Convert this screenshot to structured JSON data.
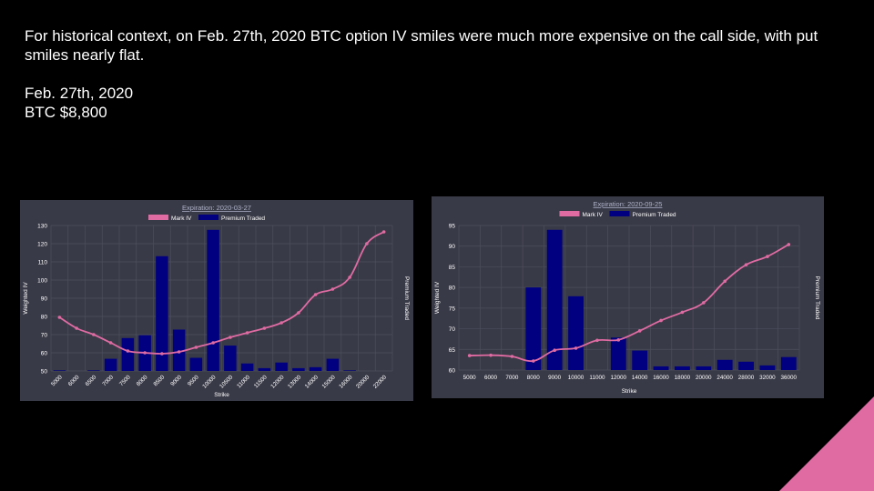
{
  "slide": {
    "intro": "For historical context, on Feb. 27th, 2020 BTC option IV smiles were much more expensive on the call side, with put smiles nearly flat.",
    "date_line": "Feb. 27th, 2020",
    "price_line": "BTC $8,800",
    "accent_color": "#e06ba3"
  },
  "chart_data": [
    {
      "type": "bar",
      "title": "Expiration: 2020-03-27",
      "xlabel": "Strike",
      "ylabel": "Weighted IV",
      "y2label": "Premium Traded",
      "ylim": [
        50,
        130
      ],
      "yticks": [
        50,
        60,
        70,
        80,
        90,
        100,
        110,
        120,
        130
      ],
      "grid": true,
      "legend_position": "top",
      "categories": [
        "5000",
        "6000",
        "6500",
        "7000",
        "7500",
        "8000",
        "8500",
        "9000",
        "9500",
        "10000",
        "10500",
        "11000",
        "11500",
        "12000",
        "13000",
        "14000",
        "15000",
        "16000",
        "20000",
        "22000"
      ],
      "series": [
        {
          "name": "Mark IV",
          "kind": "line",
          "color": "#e06ba3",
          "values": [
            79.5,
            73.5,
            70,
            65.5,
            61,
            60,
            59.5,
            60.5,
            63,
            65.5,
            68.5,
            71,
            73.5,
            76.5,
            82,
            92,
            95,
            101.5,
            120,
            126.5
          ]
        },
        {
          "name": "Premium Traded",
          "kind": "bar",
          "color": "#000080",
          "values": [
            0.3,
            0,
            0.3,
            6.5,
            17.5,
            19,
            61,
            22,
            7,
            75,
            13.5,
            4,
            1.5,
            4.5,
            1.5,
            2,
            6.5,
            0.3,
            0,
            0
          ]
        }
      ]
    },
    {
      "type": "bar",
      "title": "Expiration: 2020-09-25",
      "xlabel": "Strike",
      "ylabel": "Weighted IV",
      "y2label": "Premium Traded",
      "ylim": [
        60,
        95
      ],
      "yticks": [
        60,
        65,
        70,
        75,
        80,
        85,
        90,
        95
      ],
      "grid": true,
      "legend_position": "top",
      "categories": [
        "5000",
        "6000",
        "7000",
        "8000",
        "9000",
        "10000",
        "11000",
        "12000",
        "14000",
        "16000",
        "18000",
        "20000",
        "24000",
        "28000",
        "32000",
        "36000"
      ],
      "series": [
        {
          "name": "Mark IV",
          "kind": "line",
          "color": "#e06ba3",
          "values": [
            63.5,
            63.6,
            63.3,
            62.2,
            64.8,
            65.3,
            67.2,
            67.3,
            69.5,
            72,
            74,
            76.3,
            81.5,
            85.5,
            87.5,
            90.4
          ]
        },
        {
          "name": "Premium Traded",
          "kind": "bar",
          "color": "#000080",
          "values": [
            0,
            0,
            0,
            17.8,
            30.2,
            15.9,
            0,
            7,
            4.2,
            0.8,
            0.8,
            0.8,
            2.2,
            1.8,
            1,
            2.8
          ]
        }
      ]
    }
  ]
}
